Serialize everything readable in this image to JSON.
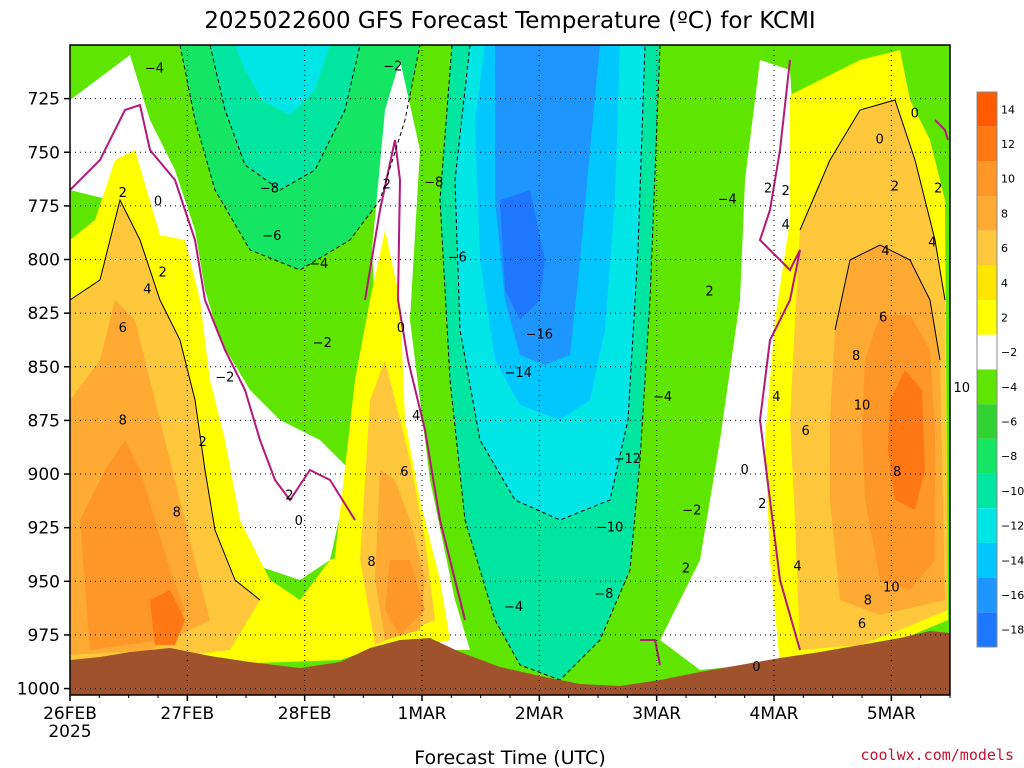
{
  "chart_data": {
    "type": "heatmap",
    "title": "2025022600 GFS Forecast Temperature (ºC) for KCMI",
    "xlabel": "Forecast Time (UTC)",
    "ylabel": "",
    "credit": "coolwx.com/models",
    "x_ticks": [
      "26FEB",
      "27FEB",
      "28FEB",
      "1MAR",
      "2MAR",
      "3MAR",
      "4MAR",
      "5MAR"
    ],
    "x_year_label": "2025",
    "xlim_days": [
      0,
      7.5
    ],
    "y_ticks": [
      725,
      750,
      775,
      800,
      825,
      850,
      875,
      900,
      925,
      950,
      975,
      1000
    ],
    "ylim": [
      1003,
      700
    ],
    "grid": true,
    "colorbar": {
      "levels": [
        14,
        12,
        10,
        8,
        6,
        4,
        2,
        -2,
        -4,
        -6,
        -8,
        -10,
        -12,
        -14,
        -16,
        -18
      ],
      "colors": [
        "#ff5a00",
        "#ff7814",
        "#ff9628",
        "#ffaa32",
        "#ffc83c",
        "#ffe600",
        "#ffff00",
        "#ffffff",
        "#5ee500",
        "#32d232",
        "#14e664",
        "#00e6a0",
        "#00e6e6",
        "#00c8ff",
        "#1e96ff",
        "#1e78ff"
      ]
    },
    "contour_labels": [
      {
        "day": 0.72,
        "p": 711,
        "text": "−4"
      },
      {
        "day": 2.75,
        "p": 710,
        "text": "−2"
      },
      {
        "day": 1.7,
        "p": 767,
        "text": "−8"
      },
      {
        "day": 1.72,
        "p": 789,
        "text": "−6"
      },
      {
        "day": 2.12,
        "p": 802,
        "text": "−4"
      },
      {
        "day": 2.15,
        "p": 839,
        "text": "−2"
      },
      {
        "day": 1.32,
        "p": 855,
        "text": "−2"
      },
      {
        "day": 3.1,
        "p": 764,
        "text": "−8"
      },
      {
        "day": 3.3,
        "p": 799,
        "text": "−6"
      },
      {
        "day": 4.0,
        "p": 835,
        "text": "−16"
      },
      {
        "day": 3.82,
        "p": 853,
        "text": "−14"
      },
      {
        "day": 4.75,
        "p": 893,
        "text": "−12"
      },
      {
        "day": 4.6,
        "p": 925,
        "text": "−10"
      },
      {
        "day": 4.55,
        "p": 956,
        "text": "−8"
      },
      {
        "day": 3.78,
        "p": 962,
        "text": "−4"
      },
      {
        "day": 5.05,
        "p": 864,
        "text": "−4"
      },
      {
        "day": 5.6,
        "p": 772,
        "text": "−4"
      },
      {
        "day": 5.45,
        "p": 815,
        "text": "2"
      },
      {
        "day": 5.3,
        "p": 917,
        "text": "−2"
      },
      {
        "day": 5.25,
        "p": 944,
        "text": "2"
      },
      {
        "day": 5.95,
        "p": 767,
        "text": "2"
      },
      {
        "day": 0.45,
        "p": 769,
        "text": "2"
      },
      {
        "day": 0.75,
        "p": 773,
        "text": "0"
      },
      {
        "day": 0.79,
        "p": 806,
        "text": "2"
      },
      {
        "day": 0.66,
        "p": 814,
        "text": "4"
      },
      {
        "day": 0.45,
        "p": 832,
        "text": "6"
      },
      {
        "day": 0.45,
        "p": 875,
        "text": "8"
      },
      {
        "day": 0.91,
        "p": 918,
        "text": "8"
      },
      {
        "day": 1.13,
        "p": 885,
        "text": "2"
      },
      {
        "day": 1.87,
        "p": 910,
        "text": "2"
      },
      {
        "day": 1.95,
        "p": 922,
        "text": "0"
      },
      {
        "day": 2.7,
        "p": 765,
        "text": "2"
      },
      {
        "day": 2.82,
        "p": 832,
        "text": "0"
      },
      {
        "day": 2.95,
        "p": 873,
        "text": "4"
      },
      {
        "day": 2.85,
        "p": 899,
        "text": "6"
      },
      {
        "day": 2.57,
        "p": 941,
        "text": "8"
      },
      {
        "day": 6.1,
        "p": 784,
        "text": "4"
      },
      {
        "day": 6.9,
        "p": 744,
        "text": "0"
      },
      {
        "day": 7.03,
        "p": 766,
        "text": "2"
      },
      {
        "day": 6.95,
        "p": 796,
        "text": "4"
      },
      {
        "day": 6.93,
        "p": 827,
        "text": "6"
      },
      {
        "day": 6.7,
        "p": 845,
        "text": "8"
      },
      {
        "day": 6.75,
        "p": 868,
        "text": "10"
      },
      {
        "day": 6.02,
        "p": 864,
        "text": "4"
      },
      {
        "day": 6.27,
        "p": 880,
        "text": "6"
      },
      {
        "day": 7.05,
        "p": 899,
        "text": "8"
      },
      {
        "day": 7.0,
        "p": 953,
        "text": "10"
      },
      {
        "day": 6.8,
        "p": 959,
        "text": "8"
      },
      {
        "day": 6.75,
        "p": 970,
        "text": "6"
      },
      {
        "day": 5.9,
        "p": 914,
        "text": "2"
      },
      {
        "day": 6.2,
        "p": 943,
        "text": "4"
      },
      {
        "day": 5.75,
        "p": 898,
        "text": "0"
      },
      {
        "day": 5.85,
        "p": 990,
        "text": "0"
      },
      {
        "day": 6.1,
        "p": 768,
        "text": "2"
      },
      {
        "day": 7.2,
        "p": 732,
        "text": "0"
      },
      {
        "day": 7.4,
        "p": 767,
        "text": "2"
      },
      {
        "day": 7.35,
        "p": 792,
        "text": "4"
      },
      {
        "day": 7.6,
        "p": 860,
        "text": "10"
      }
    ]
  }
}
